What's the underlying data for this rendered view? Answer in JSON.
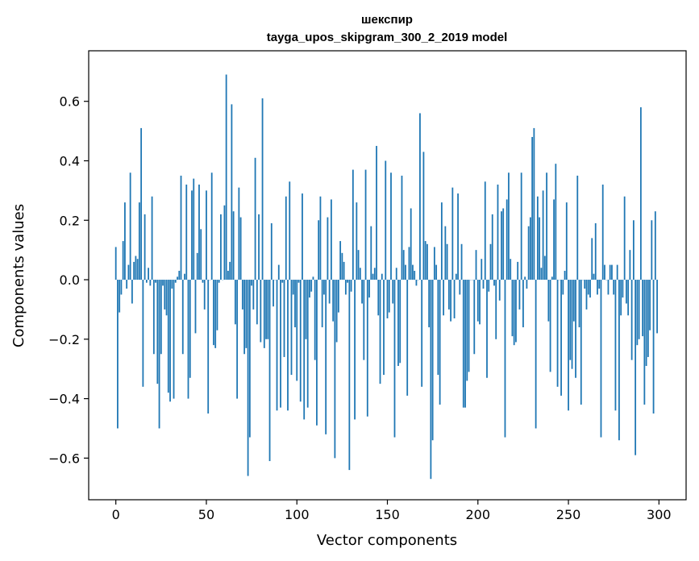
{
  "chart_data": {
    "type": "bar",
    "title": "шекспир",
    "subtitle": "tayga_upos_skipgram_300_2_2019 model",
    "xlabel": "Vector components",
    "ylabel": "Components values",
    "xlim": [
      -15,
      315
    ],
    "ylim": [
      -0.74,
      0.77
    ],
    "xticks": [
      0,
      50,
      100,
      150,
      200,
      250,
      300
    ],
    "yticks": [
      -0.6,
      -0.4,
      -0.2,
      0.0,
      0.2,
      0.4,
      0.6
    ],
    "xtick_labels": [
      "0",
      "50",
      "100",
      "150",
      "200",
      "250",
      "300"
    ],
    "ytick_labels": [
      "−0.6",
      "−0.4",
      "−0.2",
      "0.0",
      "0.2",
      "0.4",
      "0.6"
    ],
    "grid": false,
    "bar_color": "#1f77b4",
    "values": [
      0.11,
      -0.5,
      -0.11,
      -0.05,
      0.13,
      0.26,
      -0.03,
      0.05,
      0.36,
      -0.08,
      0.06,
      0.08,
      0.07,
      0.26,
      0.51,
      -0.36,
      0.22,
      -0.01,
      0.04,
      -0.02,
      0.28,
      -0.25,
      -0.01,
      -0.35,
      -0.5,
      -0.25,
      -0.02,
      -0.1,
      -0.12,
      -0.38,
      -0.41,
      -0.03,
      -0.4,
      -0.01,
      0.01,
      0.03,
      0.35,
      -0.25,
      0.02,
      0.32,
      -0.4,
      -0.33,
      0.3,
      0.34,
      -0.18,
      0.09,
      0.32,
      0.17,
      -0.01,
      -0.1,
      0.3,
      -0.45,
      0.0,
      0.36,
      -0.22,
      -0.23,
      -0.17,
      -0.01,
      0.22,
      0.0,
      0.25,
      0.69,
      0.03,
      0.06,
      0.59,
      0.23,
      -0.15,
      -0.4,
      0.31,
      0.21,
      -0.1,
      -0.25,
      -0.23,
      -0.66,
      -0.53,
      -0.02,
      -0.1,
      0.41,
      -0.15,
      0.22,
      -0.21,
      0.61,
      -0.23,
      -0.2,
      -0.2,
      -0.61,
      0.19,
      -0.09,
      0.0,
      -0.44,
      0.05,
      -0.43,
      -0.01,
      -0.26,
      0.28,
      -0.44,
      0.33,
      -0.32,
      -0.05,
      -0.16,
      -0.34,
      -0.01,
      -0.41,
      0.29,
      -0.47,
      -0.2,
      -0.43,
      -0.06,
      -0.04,
      0.01,
      -0.27,
      -0.49,
      0.2,
      0.28,
      -0.16,
      -0.05,
      -0.52,
      0.21,
      -0.08,
      0.27,
      -0.14,
      -0.6,
      -0.21,
      -0.11,
      0.13,
      0.09,
      0.06,
      -0.05,
      -0.01,
      -0.64,
      -0.04,
      0.37,
      -0.47,
      0.26,
      0.1,
      0.04,
      -0.08,
      -0.27,
      0.37,
      -0.46,
      -0.06,
      0.18,
      0.02,
      0.04,
      0.45,
      -0.12,
      -0.35,
      0.02,
      -0.32,
      0.4,
      -0.13,
      -0.11,
      0.36,
      -0.08,
      -0.53,
      0.04,
      -0.29,
      -0.28,
      0.35,
      0.1,
      0.05,
      -0.39,
      0.11,
      0.24,
      0.05,
      0.03,
      -0.02,
      0.0,
      0.56,
      -0.36,
      0.43,
      0.13,
      0.12,
      -0.16,
      -0.67,
      -0.54,
      0.11,
      0.05,
      -0.32,
      -0.42,
      0.26,
      -0.12,
      0.18,
      0.12,
      -0.1,
      -0.14,
      0.31,
      -0.13,
      0.02,
      0.29,
      -0.05,
      0.12,
      -0.43,
      -0.43,
      -0.34,
      -0.31,
      0.0,
      0.0,
      -0.25,
      0.1,
      -0.14,
      -0.15,
      0.07,
      -0.03,
      0.33,
      -0.33,
      -0.04,
      0.12,
      0.22,
      -0.02,
      -0.2,
      0.32,
      -0.07,
      0.23,
      0.24,
      -0.53,
      0.27,
      0.36,
      0.07,
      -0.19,
      -0.22,
      -0.21,
      0.06,
      -0.1,
      0.36,
      -0.16,
      0.01,
      -0.03,
      0.18,
      0.21,
      0.48,
      0.51,
      -0.5,
      0.28,
      0.21,
      0.04,
      0.3,
      0.08,
      0.36,
      -0.14,
      -0.31,
      0.01,
      0.27,
      0.39,
      -0.36,
      0.0,
      -0.39,
      -0.05,
      0.03,
      0.26,
      -0.44,
      -0.27,
      -0.3,
      -0.14,
      -0.33,
      0.35,
      -0.16,
      -0.42,
      0.0,
      -0.03,
      -0.1,
      -0.05,
      -0.06,
      0.14,
      0.02,
      0.19,
      -0.05,
      -0.03,
      -0.53,
      0.32,
      0.05,
      0.0,
      -0.05,
      0.05,
      0.05,
      -0.05,
      -0.44,
      0.05,
      -0.54,
      -0.12,
      -0.06,
      0.28,
      -0.08,
      -0.12,
      0.1,
      -0.27,
      0.2,
      -0.59,
      -0.22,
      -0.2,
      0.58,
      -0.19,
      -0.42,
      -0.29,
      -0.26,
      -0.17,
      0.2,
      -0.45,
      0.23,
      -0.18
    ]
  }
}
